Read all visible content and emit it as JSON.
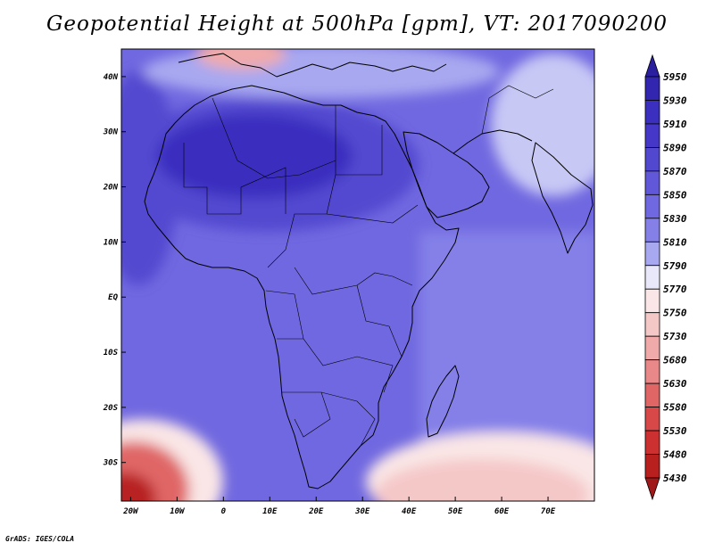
{
  "title": "Geopotential Height at 500hPa [gpm], VT: 2017090200",
  "credit": "GrADS: IGES/COLA",
  "axes": {
    "lat_labels": [
      "40N",
      "30N",
      "20N",
      "10N",
      "EQ",
      "10S",
      "20S",
      "30S"
    ],
    "lat_values": [
      40,
      30,
      20,
      10,
      0,
      -10,
      -20,
      -30
    ],
    "lon_labels": [
      "20W",
      "10W",
      "0",
      "10E",
      "20E",
      "30E",
      "40E",
      "50E",
      "60E",
      "70E"
    ],
    "lon_values": [
      -20,
      -10,
      0,
      10,
      20,
      30,
      40,
      50,
      60,
      70
    ],
    "lon_range": [
      -22,
      80
    ],
    "lat_range": [
      -37,
      45
    ]
  },
  "colorbar": {
    "levels": [
      "5950",
      "5930",
      "5910",
      "5890",
      "5870",
      "5850",
      "5830",
      "5810",
      "5790",
      "5770",
      "5750",
      "5730",
      "5680",
      "5630",
      "5580",
      "5530",
      "5480",
      "5430"
    ],
    "colors": [
      "#2a1f9e",
      "#3226b0",
      "#3a2fbf",
      "#4538c8",
      "#5248d0",
      "#6058d8",
      "#7068e0",
      "#8480e8",
      "#a8a8f0",
      "#e8e8fa",
      "#fae6e6",
      "#f5c8c8",
      "#f0aaaa",
      "#e88888",
      "#e06666",
      "#d84848",
      "#cc3030",
      "#b82020",
      "#a01818"
    ]
  },
  "map_colors": {
    "background": "#7068e0",
    "ocean_east": "#8480e8",
    "sahara_core": "#3a2fbf",
    "sahara_outer": "#5248d0",
    "west_atlantic": "#5248d0",
    "mediterranean_north": "#a8a8f0",
    "europe_high": "#f0aaaa",
    "south_atlantic_low": "#e06666",
    "south_atlantic_core": "#b82020",
    "indian_ocean_low": "#f5c8c8",
    "white_band": "#fae6e6",
    "asia_pale": "#c8c8f5"
  }
}
